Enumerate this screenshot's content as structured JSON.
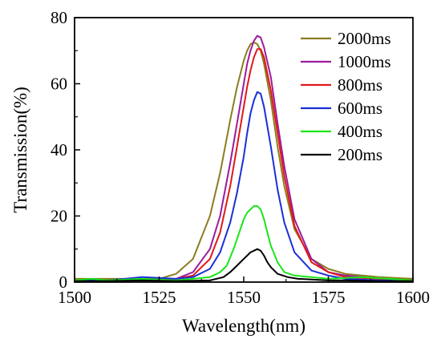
{
  "chart_data": {
    "type": "line",
    "xlabel": "Wavelength(nm)",
    "ylabel": "Transmission(%)",
    "xlim": [
      1500,
      1600
    ],
    "ylim": [
      0,
      80
    ],
    "xticks": [
      1500,
      1525,
      1550,
      1575,
      1600
    ],
    "yticks": [
      0,
      20,
      40,
      60,
      80
    ],
    "grid": false,
    "legend_position": "top-right",
    "series": [
      {
        "name": "2000ms",
        "color": "#8b7d1e",
        "x": [
          1500,
          1510,
          1520,
          1525,
          1530,
          1535,
          1540,
          1543,
          1546,
          1548,
          1550,
          1551,
          1552,
          1553,
          1554,
          1555,
          1556,
          1558,
          1560,
          1562,
          1565,
          1570,
          1575,
          1580,
          1590,
          1600
        ],
        "y": [
          1,
          1,
          1,
          1,
          2.5,
          7,
          20,
          33,
          49,
          59,
          67,
          70,
          72,
          72.5,
          72,
          70,
          66,
          55,
          41,
          29,
          16,
          7,
          4,
          2.5,
          1.5,
          1
        ]
      },
      {
        "name": "1000ms",
        "color": "#9b1b9b",
        "x": [
          1500,
          1510,
          1520,
          1530,
          1535,
          1540,
          1543,
          1546,
          1548,
          1550,
          1551,
          1552,
          1553,
          1554,
          1555,
          1556,
          1558,
          1560,
          1562,
          1565,
          1570,
          1575,
          1580,
          1590,
          1600
        ],
        "y": [
          0.5,
          0.5,
          0.5,
          1,
          3,
          10,
          20,
          36,
          48,
          60,
          66,
          70,
          73,
          74.5,
          74,
          71,
          62,
          48,
          35,
          19,
          7,
          3,
          2,
          1,
          0.5
        ]
      },
      {
        "name": "800ms",
        "color": "#e01919",
        "x": [
          1500,
          1510,
          1520,
          1530,
          1535,
          1540,
          1543,
          1546,
          1548,
          1550,
          1551,
          1552,
          1553,
          1554,
          1555,
          1556,
          1558,
          1560,
          1562,
          1565,
          1570,
          1575,
          1580,
          1590,
          1600
        ],
        "y": [
          0.5,
          0.5,
          0.5,
          1,
          2,
          7,
          15,
          29,
          41,
          53,
          59,
          64,
          68,
          70.5,
          70.5,
          68,
          58,
          45,
          32,
          17,
          6,
          3,
          1.5,
          1,
          0.5
        ]
      },
      {
        "name": "600ms",
        "color": "#1a2fd6",
        "x": [
          1500,
          1510,
          1520,
          1530,
          1535,
          1540,
          1543,
          1546,
          1548,
          1550,
          1551,
          1552,
          1553,
          1554,
          1555,
          1556,
          1558,
          1560,
          1562,
          1565,
          1570,
          1575,
          1580,
          1590,
          1600
        ],
        "y": [
          0.5,
          0.5,
          1.5,
          1,
          1.5,
          4,
          9,
          18,
          27,
          38,
          45,
          51,
          55,
          57.5,
          57,
          53,
          41,
          28,
          18,
          9,
          3.5,
          2,
          1,
          0.5,
          0.5
        ]
      },
      {
        "name": "400ms",
        "color": "#19e619",
        "x": [
          1500,
          1505,
          1510,
          1520,
          1530,
          1540,
          1543,
          1545,
          1547,
          1549,
          1550,
          1551,
          1552,
          1553,
          1554,
          1555,
          1556,
          1557,
          1558,
          1560,
          1562,
          1565,
          1570,
          1575,
          1585,
          1600
        ],
        "y": [
          0.5,
          1,
          0.5,
          1,
          0.5,
          1.5,
          3,
          5,
          10,
          16,
          19,
          21,
          22,
          23,
          23,
          22,
          19,
          15,
          11,
          6,
          3,
          2,
          1.5,
          1,
          1.5,
          0.5
        ]
      },
      {
        "name": "200ms",
        "color": "#000000",
        "x": [
          1500,
          1510,
          1520,
          1530,
          1540,
          1544,
          1546,
          1548,
          1550,
          1551,
          1552,
          1553,
          1554,
          1555,
          1556,
          1557,
          1558,
          1560,
          1563,
          1566,
          1570,
          1575,
          1580,
          1590,
          1600
        ],
        "y": [
          0.3,
          0.3,
          0.5,
          0.3,
          0.5,
          1.5,
          3,
          5,
          7,
          8,
          9,
          9.5,
          10,
          9.5,
          8,
          6,
          4.5,
          2.5,
          1.5,
          1,
          0.8,
          0.5,
          0.5,
          0.3,
          0.3
        ]
      }
    ]
  }
}
